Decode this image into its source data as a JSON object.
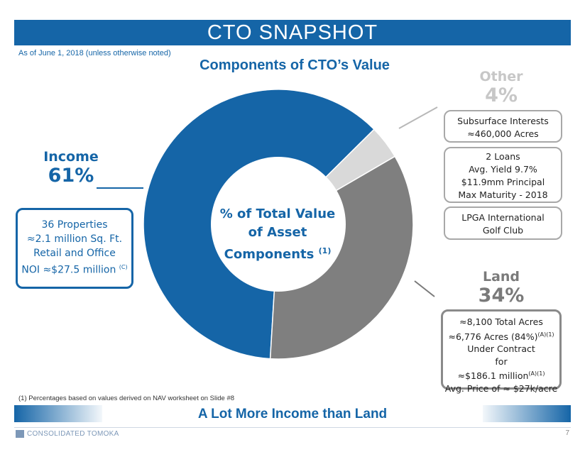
{
  "header": {
    "title": "CTO SNAPSHOT",
    "as_of": "As of June 1, 2018 (unless otherwise noted)",
    "chart_title": "Components of CTO’s Value"
  },
  "chart_data": {
    "type": "pie",
    "title": "Components of CTO’s Value",
    "center_label": "% of Total Value of Asset Components",
    "center_label_ref": "(1)",
    "slices": [
      {
        "name": "Income",
        "value": 61,
        "label": "61%",
        "color": "#1565a7"
      },
      {
        "name": "Land",
        "value": 34,
        "label": "34%",
        "color": "#7f7f7f"
      },
      {
        "name": "Other",
        "value": 4,
        "label": "4%",
        "color": "#d9d9d9"
      }
    ]
  },
  "center": {
    "line1": "% of Total Value",
    "line2": "of Asset",
    "line3": "Components",
    "ref": "(1)"
  },
  "income_box": {
    "line1": "36 Properties",
    "line2": "≈2.1 million Sq. Ft.",
    "line3": "Retail and Office",
    "line4": "NOI ≈$27.5 million",
    "ref": "(C)"
  },
  "other_boxes": {
    "subsurface": {
      "line1": "Subsurface Interests",
      "line2": "≈460,000 Acres"
    },
    "loans": {
      "line1": "2 Loans",
      "line2": "Avg. Yield 9.7%",
      "line3": "$11.9mm Principal",
      "line4": "Max Maturity - 2018"
    },
    "lpga": {
      "line1": "LPGA International",
      "line2": "Golf Club"
    }
  },
  "land_box": {
    "line1": "≈8,100 Total Acres",
    "line2": "≈6,776 Acres (84%)",
    "line2_ref": "(A)(1)",
    "line3": "Under Contract",
    "line4": "for",
    "line5": "≈$186.1 million",
    "line5_ref": "(A)(1)",
    "line6": "Avg. Price of ≈ $27k/acre"
  },
  "footnote": "(1)    Percentages based on values derived on NAV worksheet on Slide #8",
  "tagline": "A Lot More Income than Land",
  "footer": {
    "company": "CONSOLIDATED TOMOKA",
    "page": "7"
  }
}
